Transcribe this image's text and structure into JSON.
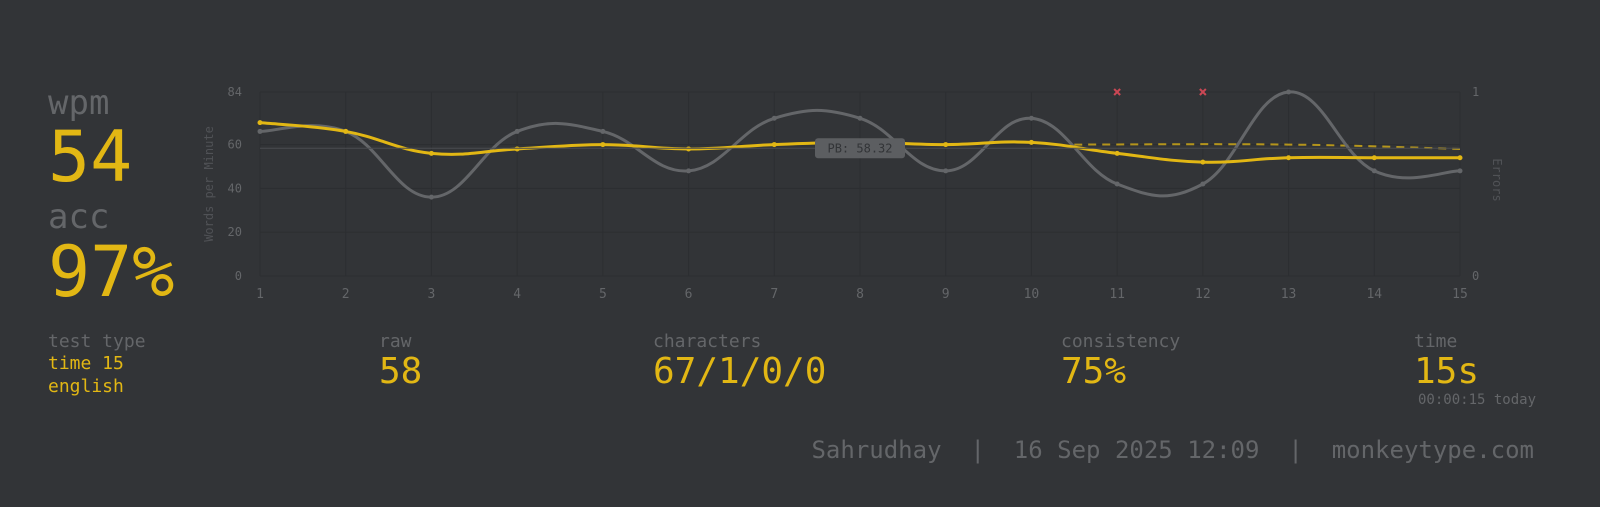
{
  "summary": {
    "wpm_label": "wpm",
    "wpm_value": "54",
    "acc_label": "acc",
    "acc_value": "97%"
  },
  "stats": {
    "test_type_label": "test type",
    "test_type_mode": "time 15",
    "test_type_language": "english",
    "raw_label": "raw",
    "raw_value": "58",
    "characters_label": "characters",
    "characters_value": "67/1/0/0",
    "consistency_label": "consistency",
    "consistency_value": "75%",
    "time_label": "time",
    "time_value": "15s",
    "time_sub": "00:00:15 today"
  },
  "footer": {
    "user": "Sahrudhay",
    "sep1": "|",
    "datetime": "16 Sep 2025 12:09",
    "sep2": "|",
    "site": "monkeytype.com"
  },
  "colors": {
    "background": "#323437",
    "main": "#e2b714",
    "sub": "#646669",
    "error": "#ca4754"
  },
  "chart_data": {
    "type": "line",
    "x": [
      1,
      2,
      3,
      4,
      5,
      6,
      7,
      8,
      9,
      10,
      11,
      12,
      13,
      14,
      15
    ],
    "xlim": [
      1,
      15
    ],
    "ylim": [
      0,
      84
    ],
    "y_ticks": [
      0,
      20,
      40,
      60,
      84
    ],
    "ylabel": "Words per Minute",
    "y2label": "Errors",
    "y2lim": [
      0,
      1
    ],
    "y2_ticks": [
      0,
      1
    ],
    "grid": true,
    "series": [
      {
        "values": [
          70,
          66,
          56,
          58,
          60,
          58,
          60,
          61,
          60,
          61,
          56,
          52,
          54,
          54,
          54
        ],
        "color": "#e2b714"
      },
      {
        "values": [
          66,
          66,
          36,
          66,
          66,
          48,
          72,
          72,
          48,
          72,
          42,
          42,
          84,
          48,
          48
        ],
        "color": "#646669"
      }
    ],
    "trend": {
      "x": [
        10.5,
        13,
        15
      ],
      "values": [
        60,
        60,
        58
      ],
      "color": "#e2b714",
      "dashed": true
    },
    "errors": [
      {
        "x": 11,
        "value": 1
      },
      {
        "x": 12,
        "value": 1
      }
    ],
    "annotation": {
      "label": "PB: 58.32",
      "value": 58.32
    }
  }
}
